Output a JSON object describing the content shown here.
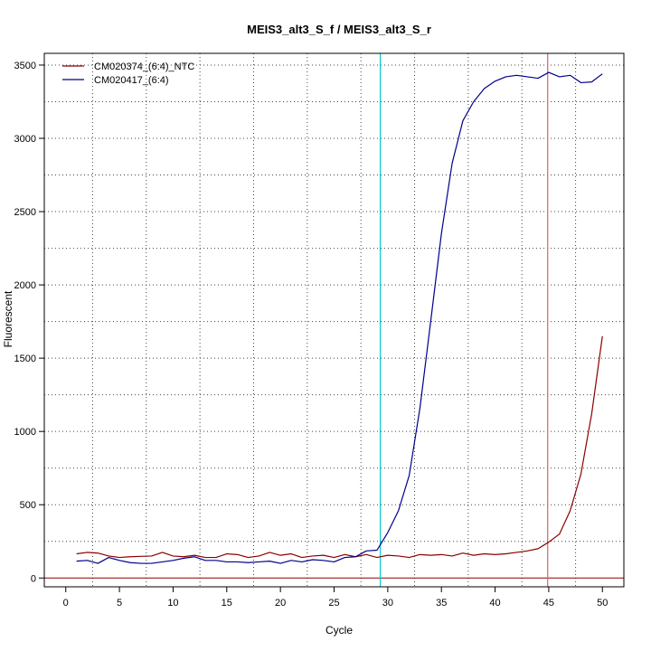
{
  "chart_data": {
    "type": "line",
    "title": "MEIS3_alt3_S_f / MEIS3_alt3_S_r",
    "xlabel": "Cycle",
    "ylabel": "Fluorescent",
    "xlim": [
      -2,
      52
    ],
    "ylim": [
      -60,
      3580
    ],
    "x_ticks": [
      0,
      5,
      10,
      15,
      20,
      25,
      30,
      35,
      40,
      45,
      50
    ],
    "y_ticks": [
      0,
      500,
      1000,
      1500,
      2000,
      2500,
      3000,
      3500
    ],
    "grid": true,
    "grid_x": [
      2.5,
      7.5,
      12.5,
      17.5,
      22.5,
      27.5,
      32.5,
      37.5,
      42.5,
      47.5
    ],
    "grid_y": [
      250,
      500,
      750,
      1000,
      1250,
      1500,
      1750,
      2000,
      2250,
      2500,
      2750,
      3000,
      3250,
      3500
    ],
    "legend_position": "top-left",
    "threshold_line": {
      "y": 0,
      "color": "#8B0000"
    },
    "vertical_lines": [
      {
        "x": 29.3,
        "color": "#00CED1"
      },
      {
        "x": 44.9,
        "color": "#E06060"
      }
    ],
    "x": [
      1,
      2,
      3,
      4,
      5,
      6,
      7,
      8,
      9,
      10,
      11,
      12,
      13,
      14,
      15,
      16,
      17,
      18,
      19,
      20,
      21,
      22,
      23,
      24,
      25,
      26,
      27,
      28,
      29,
      30,
      31,
      32,
      33,
      34,
      35,
      36,
      37,
      38,
      39,
      40,
      41,
      42,
      43,
      44,
      45,
      46,
      47,
      48,
      49,
      50
    ],
    "series": [
      {
        "name": "CM020374_(6:4)_NTC",
        "color": "#8B0000",
        "values": [
          165,
          175,
          170,
          150,
          140,
          145,
          148,
          150,
          175,
          150,
          145,
          155,
          140,
          140,
          165,
          160,
          140,
          150,
          175,
          155,
          165,
          140,
          150,
          155,
          140,
          160,
          145,
          160,
          140,
          155,
          150,
          140,
          160,
          155,
          160,
          150,
          170,
          155,
          165,
          160,
          165,
          175,
          185,
          200,
          245,
          300,
          460,
          710,
          1120,
          1650
        ]
      },
      {
        "name": "CM020417_(6:4)",
        "color": "#00008B",
        "values": [
          115,
          120,
          100,
          140,
          120,
          105,
          100,
          100,
          110,
          120,
          135,
          145,
          120,
          120,
          110,
          110,
          105,
          110,
          115,
          100,
          120,
          110,
          125,
          120,
          110,
          140,
          145,
          185,
          190,
          310,
          460,
          700,
          1160,
          1750,
          2350,
          2830,
          3120,
          3250,
          3340,
          3390,
          3420,
          3430,
          3420,
          3410,
          3450,
          3420,
          3430,
          3380,
          3385,
          3440
        ]
      }
    ]
  }
}
